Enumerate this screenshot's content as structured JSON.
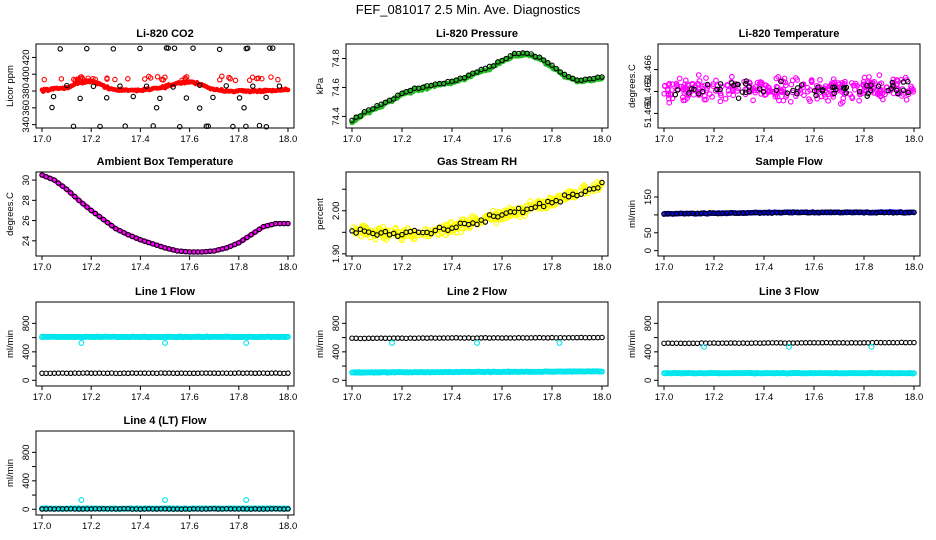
{
  "title": "FEF_081017  2.5 Min. Ave. Diagnostics",
  "colors": {
    "co2": "#ff0000",
    "pressure": "#22bb22",
    "temperature": "#ff00ff",
    "ambient": "#ff00ff",
    "rh": "#ffff00",
    "sample": "#0000cc",
    "line": "#00e5ee",
    "overlay": "#000000"
  },
  "chart_data": [
    {
      "id": "co2",
      "type": "scatter",
      "title": "Li-820 CO2",
      "ylabel": "Licor ppm",
      "xlim": [
        17.0,
        18.0
      ],
      "ylim": [
        336,
        436
      ],
      "yticks": [
        340,
        360,
        380,
        400,
        420
      ],
      "xticks": [
        17.0,
        17.2,
        17.4,
        17.6,
        17.8,
        18.0
      ],
      "color_key": "co2",
      "series": [
        {
          "name": "main",
          "x": [
            17.0,
            17.1,
            17.15,
            17.2,
            17.25,
            17.3,
            17.4,
            17.5,
            17.55,
            17.6,
            17.65,
            17.7,
            17.8,
            17.9,
            18.0
          ],
          "y": [
            381,
            384,
            390,
            392,
            386,
            381,
            381,
            385,
            389,
            391,
            388,
            381,
            380,
            380,
            381
          ]
        },
        {
          "name": "overlay",
          "x": [
            17.0,
            17.1,
            17.17,
            17.25,
            17.34,
            17.42,
            17.5,
            17.58,
            17.66,
            17.75,
            17.83,
            17.92,
            18.0
          ],
          "y": [
            385,
            389,
            386,
            384,
            386,
            383,
            386,
            387,
            386,
            385,
            385,
            385,
            386
          ]
        }
      ]
    },
    {
      "id": "pressure",
      "type": "scatter",
      "title": "Li-820 Pressure",
      "ylabel": "kPa",
      "xlim": [
        17.0,
        18.0
      ],
      "ylim": [
        74.32,
        74.9
      ],
      "yticks": [
        74.4,
        74.6,
        74.8
      ],
      "ytick_labels": [
        "74.4",
        "74.6",
        "74.8"
      ],
      "xticks": [
        17.0,
        17.2,
        17.4,
        17.6,
        17.8,
        18.0
      ],
      "color_key": "pressure",
      "series": [
        {
          "name": "main",
          "x": [
            17.0,
            17.05,
            17.1,
            17.15,
            17.2,
            17.25,
            17.3,
            17.35,
            17.4,
            17.45,
            17.5,
            17.55,
            17.6,
            17.65,
            17.7,
            17.75,
            17.8,
            17.85,
            17.9,
            18.0
          ],
          "y": [
            74.36,
            74.42,
            74.46,
            74.5,
            74.55,
            74.58,
            74.6,
            74.62,
            74.63,
            74.66,
            74.7,
            74.73,
            74.78,
            74.82,
            74.83,
            74.8,
            74.74,
            74.68,
            74.64,
            74.66
          ]
        }
      ]
    },
    {
      "id": "temperature",
      "type": "scatter",
      "title": "Li-820 Temperature",
      "ylabel": "degrees.C",
      "xlim": [
        17.0,
        18.0
      ],
      "ylim": [
        51.458,
        51.4695
      ],
      "yticks": [
        51.46,
        51.463,
        51.466
      ],
      "ytick_labels": [
        "51.460",
        "51.463",
        "51.466"
      ],
      "color_key": "temperature",
      "xticks": [
        17.0,
        17.2,
        17.4,
        17.6,
        17.8,
        18.0
      ],
      "series": [
        {
          "name": "main",
          "x": [
            17.0,
            17.2,
            17.4,
            17.6,
            17.8,
            18.0
          ],
          "y": [
            51.4635,
            51.4633,
            51.4632,
            51.4633,
            51.4632,
            51.4632
          ]
        }
      ]
    },
    {
      "id": "ambient",
      "type": "scatter",
      "title": "Ambient Box Temperature",
      "ylabel": "degrees.C",
      "xlim": [
        17.0,
        18.0
      ],
      "ylim": [
        22.5,
        30.8
      ],
      "yticks": [
        24,
        26,
        28,
        30
      ],
      "xticks": [
        17.0,
        17.2,
        17.4,
        17.6,
        17.8,
        18.0
      ],
      "color_key": "ambient",
      "series": [
        {
          "name": "main",
          "x": [
            17.0,
            17.05,
            17.1,
            17.15,
            17.2,
            17.25,
            17.3,
            17.35,
            17.4,
            17.45,
            17.5,
            17.55,
            17.6,
            17.65,
            17.7,
            17.75,
            17.8,
            17.85,
            17.9,
            17.95,
            18.0
          ],
          "y": [
            30.5,
            30.0,
            29.1,
            28.0,
            27.0,
            26.1,
            25.2,
            24.6,
            24.1,
            23.7,
            23.3,
            23.0,
            22.9,
            22.9,
            23.0,
            23.3,
            23.8,
            24.6,
            25.4,
            25.7,
            25.7
          ]
        }
      ]
    },
    {
      "id": "rh",
      "type": "scatter",
      "title": "Gas Stream RH",
      "ylabel": "percent",
      "xlim": [
        17.0,
        18.0
      ],
      "ylim": [
        1.895,
        2.09
      ],
      "yticks": [
        1.9,
        1.95,
        2.0,
        2.05
      ],
      "ytick_labels": [
        "1.90",
        "",
        "2.00",
        ""
      ],
      "xticks": [
        17.0,
        17.2,
        17.4,
        17.6,
        17.8,
        18.0
      ],
      "color_key": "rh",
      "series": [
        {
          "name": "main",
          "x": [
            17.0,
            17.1,
            17.2,
            17.3,
            17.4,
            17.5,
            17.6,
            17.7,
            17.8,
            17.9,
            18.0
          ],
          "y": [
            1.955,
            1.948,
            1.945,
            1.95,
            1.96,
            1.975,
            1.99,
            2.005,
            2.02,
            2.04,
            2.06
          ]
        }
      ]
    },
    {
      "id": "sample",
      "type": "scatter",
      "title": "Sample Flow",
      "ylabel": "ml/min",
      "xlim": [
        17.0,
        18.0
      ],
      "ylim": [
        -15,
        220
      ],
      "yticks": [
        0,
        50,
        100,
        150
      ],
      "ytick_labels": [
        "0",
        "50",
        "",
        "150"
      ],
      "xticks": [
        17.0,
        17.2,
        17.4,
        17.6,
        17.8,
        18.0
      ],
      "color_key": "sample",
      "series": [
        {
          "name": "main",
          "x": [
            17.0,
            17.5,
            18.0
          ],
          "y": [
            103,
            107,
            107
          ]
        }
      ]
    },
    {
      "id": "line1",
      "type": "scatter",
      "title": "Line 1 Flow",
      "ylabel": "ml/min",
      "xlim": [
        17.0,
        18.0
      ],
      "ylim": [
        -80,
        1100
      ],
      "yticks": [
        0,
        200,
        400,
        600,
        800
      ],
      "ytick_labels": [
        "0",
        "",
        "400",
        "",
        "800"
      ],
      "xticks": [
        17.0,
        17.2,
        17.4,
        17.6,
        17.8,
        18.0
      ],
      "color_key": "line",
      "series": [
        {
          "name": "line",
          "x": [
            17.0,
            18.0
          ],
          "y": [
            610,
            610
          ]
        },
        {
          "name": "overlay",
          "x": [
            17.0,
            18.0
          ],
          "y": [
            100,
            100
          ]
        },
        {
          "name": "outliers",
          "x": [
            17.16,
            17.5,
            17.83
          ],
          "y": [
            525,
            525,
            525
          ]
        }
      ]
    },
    {
      "id": "line2",
      "type": "scatter",
      "title": "Line 2 Flow",
      "ylabel": "ml/min",
      "xlim": [
        17.0,
        18.0
      ],
      "ylim": [
        -80,
        1100
      ],
      "yticks": [
        0,
        200,
        400,
        600,
        800
      ],
      "ytick_labels": [
        "0",
        "",
        "400",
        "",
        "800"
      ],
      "xticks": [
        17.0,
        17.2,
        17.4,
        17.6,
        17.8,
        18.0
      ],
      "color_key": "line",
      "series": [
        {
          "name": "line",
          "x": [
            17.0,
            18.0
          ],
          "y": [
            110,
            125
          ]
        },
        {
          "name": "overlay",
          "x": [
            17.0,
            18.0
          ],
          "y": [
            590,
            600
          ]
        },
        {
          "name": "outliers",
          "x": [
            17.16,
            17.5,
            17.83
          ],
          "y": [
            525,
            525,
            525
          ]
        }
      ]
    },
    {
      "id": "line3",
      "type": "scatter",
      "title": "Line 3 Flow",
      "ylabel": "ml/min",
      "xlim": [
        17.0,
        18.0
      ],
      "ylim": [
        -80,
        1100
      ],
      "yticks": [
        0,
        200,
        400,
        600,
        800
      ],
      "ytick_labels": [
        "0",
        "",
        "400",
        "",
        "800"
      ],
      "xticks": [
        17.0,
        17.2,
        17.4,
        17.6,
        17.8,
        18.0
      ],
      "color_key": "line",
      "series": [
        {
          "name": "line",
          "x": [
            17.0,
            18.0
          ],
          "y": [
            100,
            100
          ]
        },
        {
          "name": "overlay",
          "x": [
            17.0,
            18.0
          ],
          "y": [
            520,
            530
          ]
        },
        {
          "name": "outliers",
          "x": [
            17.16,
            17.5,
            17.83
          ],
          "y": [
            470,
            470,
            470
          ]
        }
      ]
    },
    {
      "id": "line4",
      "type": "scatter",
      "title": "Line 4 (LT) Flow",
      "ylabel": "ml/min",
      "xlim": [
        17.0,
        18.0
      ],
      "ylim": [
        -80,
        1100
      ],
      "yticks": [
        0,
        200,
        400,
        600,
        800
      ],
      "ytick_labels": [
        "0",
        "",
        "400",
        "",
        "800"
      ],
      "xticks": [
        17.0,
        17.2,
        17.4,
        17.6,
        17.8,
        18.0
      ],
      "color_key": "line",
      "series": [
        {
          "name": "line",
          "x": [
            17.0,
            18.0
          ],
          "y": [
            10,
            10
          ]
        },
        {
          "name": "overlay",
          "x": [
            17.0,
            18.0
          ],
          "y": [
            5,
            5
          ]
        },
        {
          "name": "outliers",
          "x": [
            17.16,
            17.5,
            17.83
          ],
          "y": [
            130,
            130,
            130
          ]
        }
      ]
    }
  ]
}
